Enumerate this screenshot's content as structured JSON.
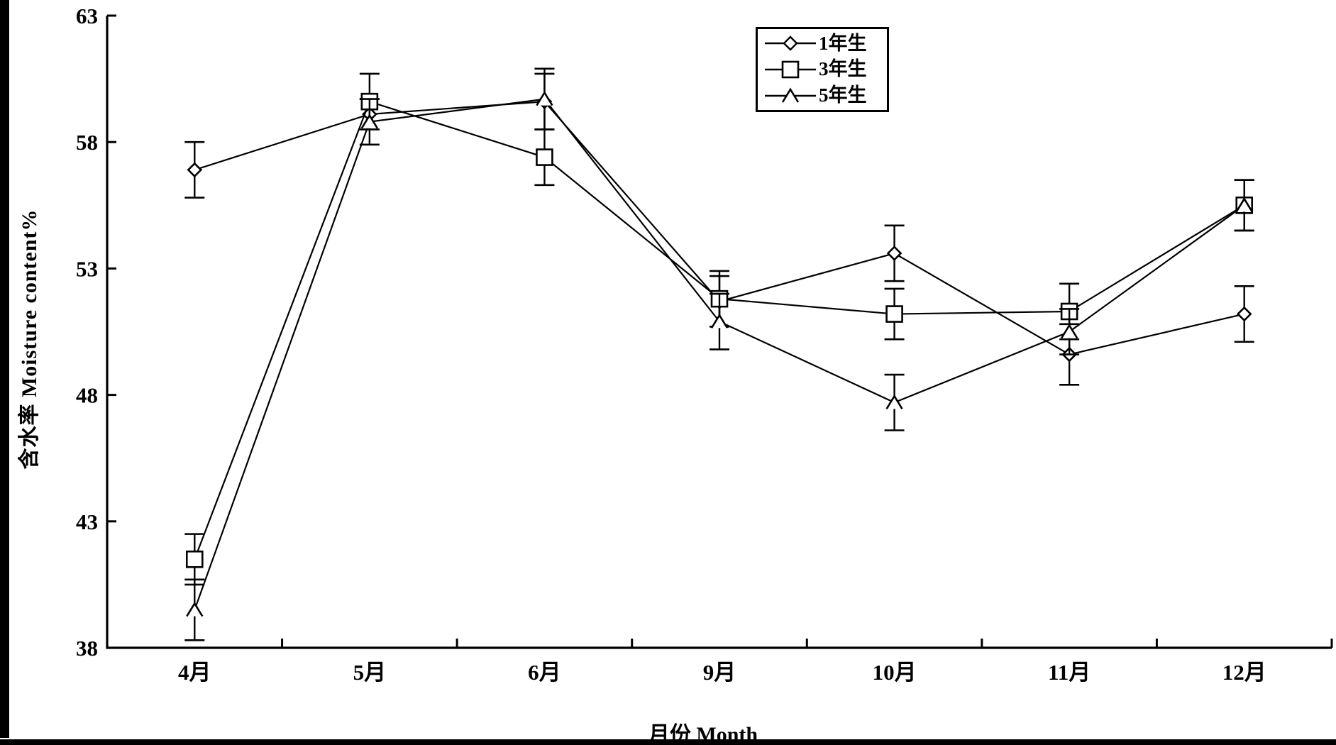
{
  "figure": {
    "background": "#ffffff",
    "ink_color": "#000000"
  },
  "axes": {
    "y_title": "含水率 Moisture content%",
    "x_title": "月份 Month",
    "y_ticks": [
      "63",
      "58",
      "53",
      "48",
      "43",
      "38"
    ],
    "x_tick_labels": [
      "4月",
      "5月",
      "6月",
      "9月",
      "10月",
      "11月",
      "12月"
    ]
  },
  "legend": {
    "items": [
      {
        "label": "1年生",
        "marker": "diamond"
      },
      {
        "label": "3年生",
        "marker": "square"
      },
      {
        "label": "5年生",
        "marker": "triangle"
      }
    ]
  },
  "chart_data": {
    "type": "line",
    "categories": [
      "4月",
      "5月",
      "6月",
      "9月",
      "10月",
      "11月",
      "12月"
    ],
    "series": [
      {
        "name": "1年生",
        "marker": "diamond",
        "values": [
          56.9,
          59.1,
          59.6,
          51.7,
          53.6,
          49.6,
          51.2
        ],
        "errors": [
          1.1,
          0.6,
          1.1,
          1.0,
          1.1,
          1.2,
          1.1
        ]
      },
      {
        "name": "3年生",
        "marker": "square",
        "values": [
          41.5,
          59.6,
          57.4,
          51.8,
          51.2,
          51.3,
          55.5
        ],
        "errors": [
          1.0,
          1.1,
          1.1,
          1.1,
          1.0,
          1.1,
          1.0
        ]
      },
      {
        "name": "5年生",
        "marker": "triangle",
        "values": [
          39.5,
          58.8,
          59.7,
          50.9,
          47.7,
          50.5,
          55.5
        ],
        "errors": [
          1.2,
          0.9,
          1.2,
          1.1,
          1.1,
          0.9,
          1.0
        ]
      }
    ],
    "xlabel": "月份 Month",
    "ylabel": "含水率 Moisture content%",
    "ylim": [
      38,
      63
    ],
    "y_tick_step": 5,
    "grid": false,
    "error_bars": true,
    "legend_position": "top-right-inside",
    "line_color": "#000000",
    "marker_fill": "#ffffff"
  }
}
